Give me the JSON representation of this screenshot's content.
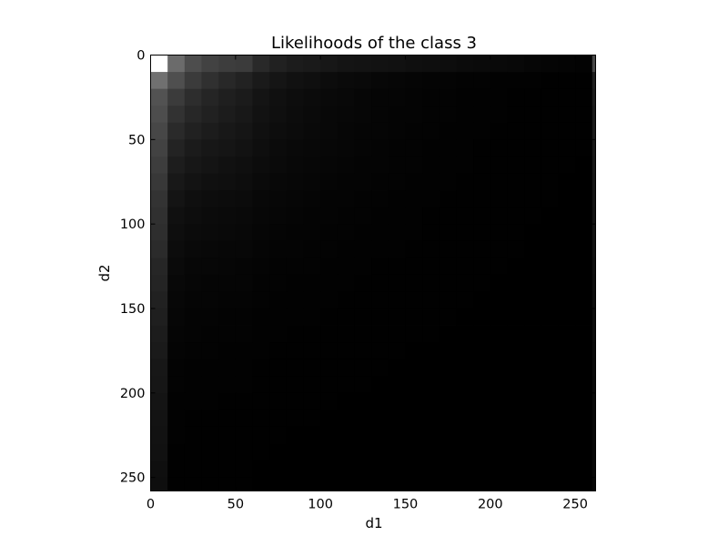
{
  "chart_data": {
    "type": "heatmap",
    "title": "Likelihoods of the class 3",
    "xlabel": "d1",
    "ylabel": "d2",
    "xlim": [
      0,
      262
    ],
    "ylim": [
      0,
      258
    ],
    "y_axis_inverted": true,
    "colormap": "gray",
    "grid": false,
    "x_ticks": [
      0,
      50,
      100,
      150,
      200,
      250
    ],
    "y_ticks": [
      0,
      50,
      100,
      150,
      200,
      250
    ],
    "x_tick_labels": [
      "0",
      "50",
      "100",
      "150",
      "200",
      "250"
    ],
    "y_tick_labels": [
      "0",
      "50",
      "100",
      "150",
      "200",
      "250"
    ],
    "cell_size": 10,
    "n_cols": 27,
    "n_rows": 27,
    "overview_note_values": {
      "top_left_cell": 1.0,
      "row0_col1": 0.42,
      "row0_col2": 0.3,
      "row0_col3": 0.26,
      "row0_col4": 0.24,
      "row0_col5": 0.23,
      "row0_col26": 0.28,
      "row26_col0": 0.3,
      "row26_col26": 0.1
    },
    "row0_intensity": [
      1.0,
      0.42,
      0.3,
      0.26,
      0.24,
      0.23,
      0.16,
      0.13,
      0.11,
      0.1,
      0.09,
      0.08,
      0.075,
      0.07,
      0.065,
      0.06,
      0.055,
      0.05,
      0.045,
      0.04,
      0.035,
      0.03,
      0.025,
      0.02,
      0.015,
      0.01,
      0.28
    ],
    "col0_intensity": [
      1.0,
      0.44,
      0.32,
      0.3,
      0.28,
      0.26,
      0.24,
      0.22,
      0.2,
      0.19,
      0.18,
      0.17,
      0.15,
      0.14,
      0.13,
      0.12,
      0.11,
      0.1,
      0.09,
      0.085,
      0.08,
      0.075,
      0.07,
      0.065,
      0.06,
      0.055,
      0.3
    ],
    "col26_intensity": [
      0.28,
      0.12,
      0.11,
      0.1,
      0.1,
      0.095,
      0.09,
      0.085,
      0.08,
      0.075,
      0.07,
      0.065,
      0.06,
      0.055,
      0.05,
      0.048,
      0.046,
      0.044,
      0.042,
      0.04,
      0.038,
      0.036,
      0.034,
      0.032,
      0.03,
      0.028,
      0.1
    ],
    "row26_intensity": [
      0.3,
      0.08,
      0.06,
      0.05,
      0.045,
      0.04,
      0.035,
      0.03,
      0.028,
      0.026,
      0.024,
      0.022,
      0.02,
      0.018,
      0.016,
      0.015,
      0.014,
      0.013,
      0.012,
      0.011,
      0.01,
      0.01,
      0.01,
      0.01,
      0.01,
      0.01,
      0.1
    ],
    "interior_falloff": 0.16
  }
}
